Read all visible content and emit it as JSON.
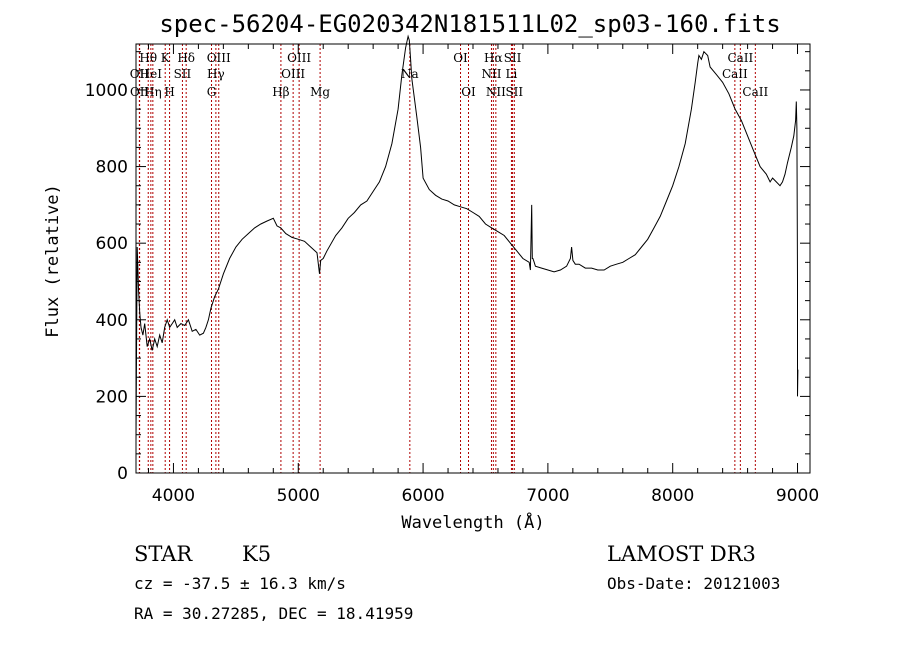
{
  "chart_data": {
    "type": "line",
    "title": "spec-56204-EG020342N181511L02_sp03-160.fits",
    "xlabel": "Wavelength (Å)",
    "ylabel": "Flux (relative)",
    "xlim": [
      3700,
      9100
    ],
    "ylim": [
      0,
      1120
    ],
    "x_ticks": [
      4000,
      5000,
      6000,
      7000,
      8000,
      9000
    ],
    "y_ticks": [
      0,
      200,
      400,
      600,
      800,
      1000
    ],
    "x_tick_labels": [
      "4000",
      "5000",
      "6000",
      "7000",
      "8000",
      "9000"
    ],
    "y_tick_labels": [
      "0",
      "200",
      "400",
      "600",
      "800",
      "1000"
    ],
    "grid": false,
    "series": [
      {
        "x": [
          3700,
          3705,
          3710,
          3720,
          3730,
          3740,
          3755,
          3770,
          3790,
          3810,
          3830,
          3850,
          3870,
          3890,
          3910,
          3930,
          3950,
          3970,
          3990,
          4010,
          4030,
          4060,
          4090,
          4120,
          4150,
          4180,
          4210,
          4240,
          4260,
          4280,
          4300,
          4330,
          4360,
          4400,
          4450,
          4500,
          4550,
          4600,
          4650,
          4700,
          4750,
          4800,
          4830,
          4860,
          4900,
          4950,
          5000,
          5050,
          5100,
          5150,
          5170,
          5180,
          5200,
          5230,
          5300,
          5350,
          5400,
          5450,
          5500,
          5550,
          5600,
          5650,
          5700,
          5750,
          5800,
          5830,
          5860,
          5880,
          5890,
          5900,
          5910,
          5930,
          5950,
          5980,
          6000,
          6050,
          6100,
          6150,
          6200,
          6250,
          6300,
          6350,
          6400,
          6450,
          6500,
          6550,
          6600,
          6650,
          6700,
          6750,
          6800,
          6850,
          6860,
          6870,
          6875,
          6880,
          6890,
          6900,
          6950,
          7000,
          7050,
          7100,
          7150,
          7180,
          7190,
          7200,
          7220,
          7250,
          7300,
          7350,
          7400,
          7450,
          7500,
          7550,
          7600,
          7650,
          7700,
          7750,
          7800,
          7850,
          7900,
          7950,
          8000,
          8050,
          8100,
          8150,
          8180,
          8200,
          8210,
          8230,
          8250,
          8280,
          8300,
          8350,
          8400,
          8450,
          8500,
          8550,
          8600,
          8650,
          8700,
          8750,
          8780,
          8800,
          8830,
          8860,
          8880,
          8900,
          8920,
          8950,
          8970,
          8985,
          8990,
          8995,
          9000,
          9000,
          9003
        ],
        "y": [
          80,
          350,
          590,
          480,
          420,
          380,
          360,
          390,
          330,
          350,
          320,
          350,
          330,
          360,
          340,
          380,
          400,
          380,
          390,
          400,
          380,
          390,
          385,
          400,
          370,
          375,
          360,
          365,
          380,
          400,
          430,
          460,
          480,
          520,
          560,
          590,
          610,
          625,
          640,
          650,
          658,
          665,
          645,
          640,
          625,
          615,
          610,
          605,
          590,
          575,
          520,
          555,
          560,
          580,
          620,
          640,
          665,
          680,
          700,
          710,
          735,
          760,
          800,
          860,
          950,
          1040,
          1110,
          1140,
          1130,
          1080,
          1030,
          980,
          930,
          850,
          770,
          740,
          725,
          715,
          710,
          700,
          695,
          690,
          680,
          670,
          650,
          640,
          630,
          620,
          600,
          580,
          560,
          550,
          530,
          700,
          560,
          560,
          550,
          540,
          535,
          530,
          525,
          530,
          540,
          560,
          590,
          555,
          545,
          545,
          535,
          535,
          530,
          530,
          540,
          545,
          550,
          560,
          570,
          590,
          610,
          640,
          670,
          710,
          750,
          800,
          860,
          950,
          1020,
          1070,
          1090,
          1080,
          1100,
          1090,
          1060,
          1040,
          1020,
          990,
          950,
          920,
          880,
          840,
          800,
          780,
          760,
          770,
          760,
          750,
          760,
          780,
          810,
          850,
          880,
          920,
          970,
          900,
          500,
          200,
          270
        ]
      }
    ],
    "line_markers": [
      {
        "label": "OII",
        "x": 3727,
        "row": 2
      },
      {
        "label": "OII",
        "x": 3729,
        "row": 3
      },
      {
        "label": "Hθ",
        "x": 3798,
        "row": 1
      },
      {
        "label": "HeI",
        "x": 3819,
        "row": 2
      },
      {
        "label": "Hη",
        "x": 3835,
        "row": 3
      },
      {
        "label": "K",
        "x": 3934,
        "row": 1
      },
      {
        "label": "SII",
        "x": 4072,
        "row": 2
      },
      {
        "label": "H",
        "x": 3969,
        "row": 3
      },
      {
        "label": "Hδ",
        "x": 4102,
        "row": 1
      },
      {
        "label": "OIII",
        "x": 4363,
        "row": 1
      },
      {
        "label": "Hγ",
        "x": 4340,
        "row": 2
      },
      {
        "label": "G",
        "x": 4305,
        "row": 3
      },
      {
        "label": "OIII",
        "x": 5007,
        "row": 1
      },
      {
        "label": "OIII",
        "x": 4959,
        "row": 2
      },
      {
        "label": "Hβ",
        "x": 4861,
        "row": 3
      },
      {
        "label": "Mg",
        "x": 5175,
        "row": 3
      },
      {
        "label": "Na",
        "x": 5894,
        "row": 2
      },
      {
        "label": "OI",
        "x": 6300,
        "row": 1
      },
      {
        "label": "OI",
        "x": 6364,
        "row": 3
      },
      {
        "label": "Hα",
        "x": 6563,
        "row": 1
      },
      {
        "label": "SII",
        "x": 6717,
        "row": 1
      },
      {
        "label": "NII",
        "x": 6548,
        "row": 2
      },
      {
        "label": "Li",
        "x": 6708,
        "row": 2
      },
      {
        "label": "NII",
        "x": 6583,
        "row": 3
      },
      {
        "label": "SII",
        "x": 6731,
        "row": 3
      },
      {
        "label": "CaII",
        "x": 8542,
        "row": 1
      },
      {
        "label": "CaII",
        "x": 8498,
        "row": 2
      },
      {
        "label": "CaII",
        "x": 8662,
        "row": 3
      }
    ],
    "line_marker_color": "#b00000"
  },
  "info": {
    "object_class": "STAR",
    "subclass": "K5",
    "survey": "LAMOST DR3",
    "redshift": "cz = -37.5 ± 16.3 km/s",
    "obs_date": "Obs-Date: 20121003",
    "coords": "RA =  30.27285, DEC =  18.41959"
  }
}
